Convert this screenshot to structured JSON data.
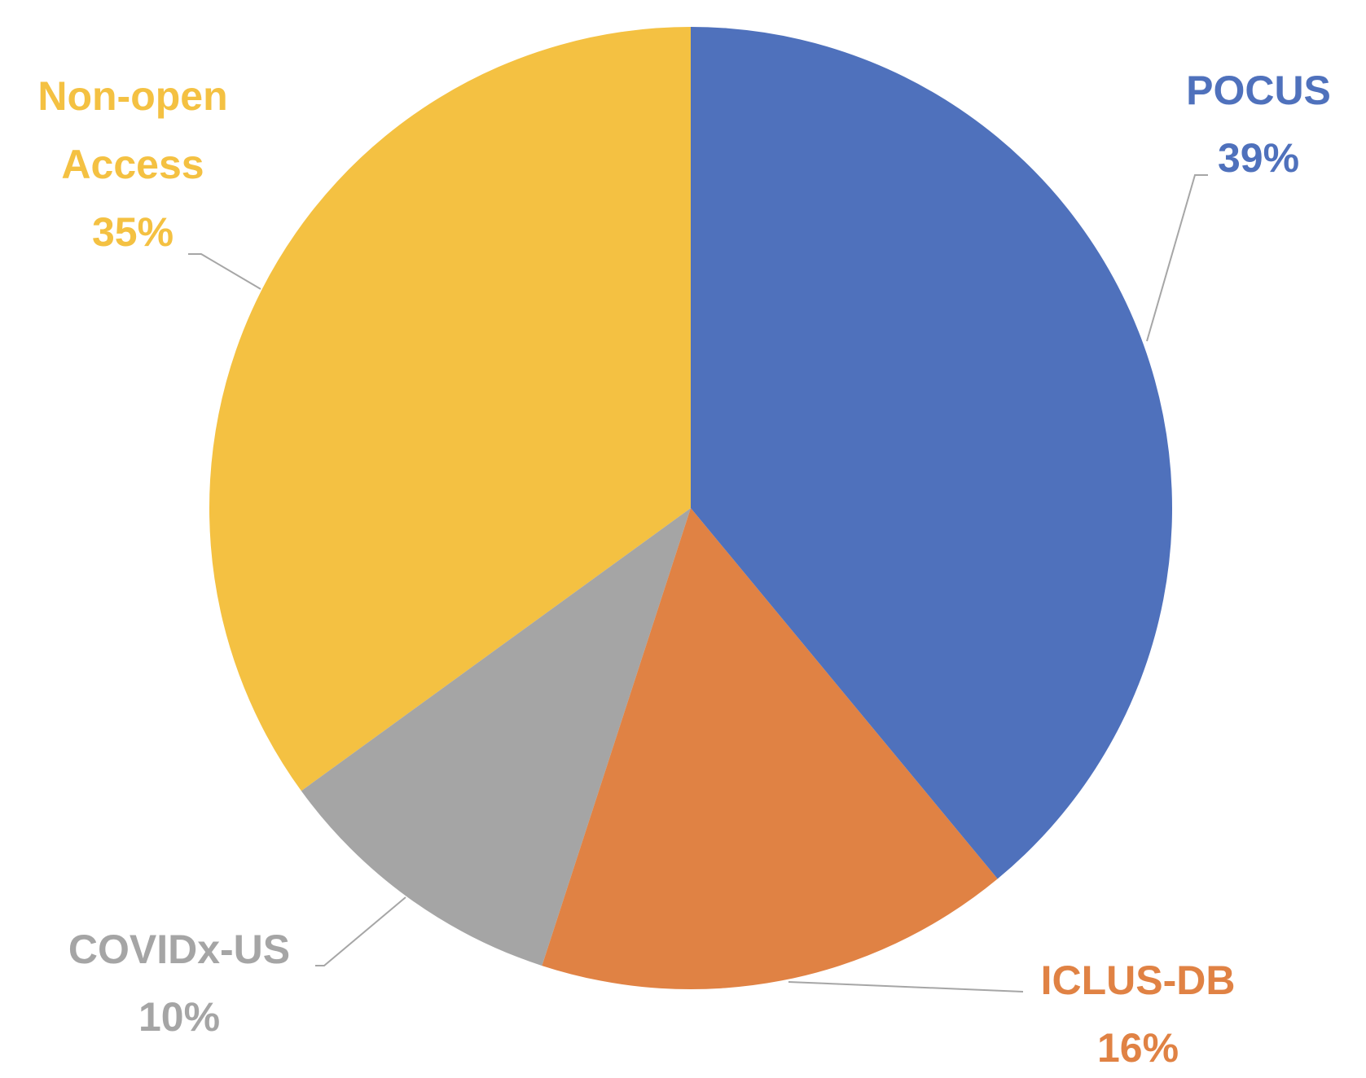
{
  "chart_data": {
    "type": "pie",
    "categories": [
      "POCUS",
      "ICLUS-DB",
      "COVIDx-US",
      "Non-open Access"
    ],
    "values": [
      39,
      16,
      10,
      35
    ],
    "value_labels": [
      "39%",
      "16%",
      "10%",
      "35%"
    ],
    "colors": [
      "#4f71bc",
      "#e08244",
      "#a5a5a5",
      "#f4c142"
    ]
  }
}
